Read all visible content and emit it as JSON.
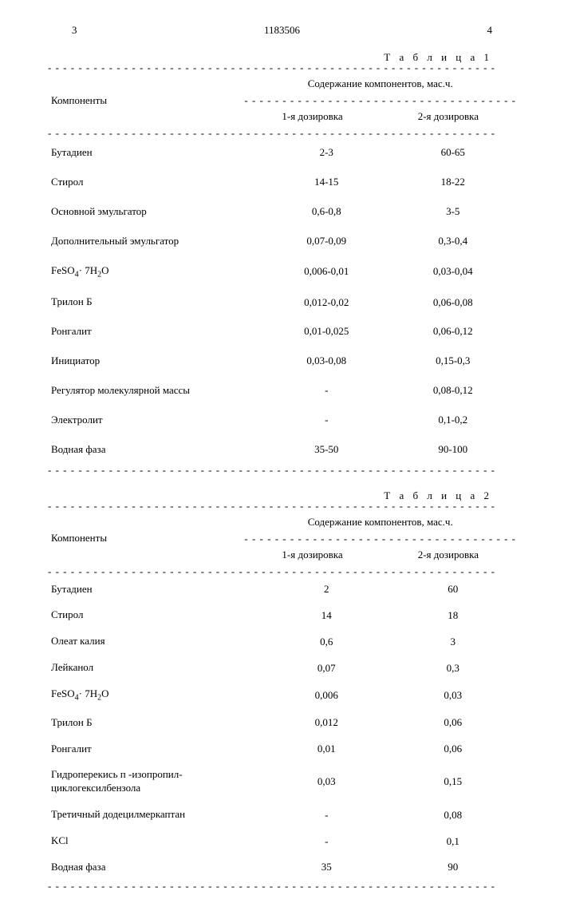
{
  "header": {
    "left_num": "3",
    "center_num": "1183506",
    "right_num": "4"
  },
  "table1": {
    "title": "Т а б л и ц а  1",
    "header_span": "Содержание компонентов, мас.ч.",
    "col_components": "Компоненты",
    "col_dose1": "1-я  дозировка",
    "col_dose2": "2-я  дозировка",
    "rows": [
      {
        "name": "Бутадиен",
        "d1": "2-3",
        "d2": "60-65"
      },
      {
        "name": "Стирол",
        "d1": "14-15",
        "d2": "18-22"
      },
      {
        "name": "Основной эмульгатор",
        "d1": "0,6-0,8",
        "d2": "3-5"
      },
      {
        "name": "Дополнительный эмульгатор",
        "d1": "0,07-0,09",
        "d2": "0,3-0,4"
      },
      {
        "name": "FeSO₄· 7H₂O",
        "d1": "0,006-0,01",
        "d2": "0,03-0,04"
      },
      {
        "name": "Трилон Б",
        "d1": "0,012-0,02",
        "d2": "0,06-0,08"
      },
      {
        "name": "Ронгалит",
        "d1": "0,01-0,025",
        "d2": "0,06-0,12"
      },
      {
        "name": "Инициатор",
        "d1": "0,03-0,08",
        "d2": "0,15-0,3"
      },
      {
        "name": "Регулятор молекулярной массы",
        "d1": "-",
        "d2": "0,08-0,12"
      },
      {
        "name": "Электролит",
        "d1": "-",
        "d2": "0,1-0,2"
      },
      {
        "name": "Водная фаза",
        "d1": "35-50",
        "d2": "90-100"
      }
    ]
  },
  "table2": {
    "title": "Т а б л и ц а  2",
    "header_span": "Содержание компонентов, мас.ч.",
    "col_components": "Компоненты",
    "col_dose1": "1-я  дозировка",
    "col_dose2": "2-я  дозировка",
    "rows": [
      {
        "name": "Бутадиен",
        "d1": "2",
        "d2": "60"
      },
      {
        "name": "Стирол",
        "d1": "14",
        "d2": "18"
      },
      {
        "name": "Олеат калия",
        "d1": "0,6",
        "d2": "3"
      },
      {
        "name": "Лейканол",
        "d1": "0,07",
        "d2": "0,3"
      },
      {
        "name": "FeSO₄· 7H₂O",
        "d1": "0,006",
        "d2": "0,03"
      },
      {
        "name": "Трилон Б",
        "d1": "0,012",
        "d2": "0,06"
      },
      {
        "name": "Ронгалит",
        "d1": "0,01",
        "d2": "0,06"
      },
      {
        "name": "Гидроперекись п -изопропил-\nциклогексилбензола",
        "d1": "0,03",
        "d2": "0,15"
      },
      {
        "name": "Третичный додецилмеркаптан",
        "d1": "-",
        "d2": "0,08"
      },
      {
        "name": "KCl",
        "d1": "-",
        "d2": "0,1"
      },
      {
        "name": "Водная фаза",
        "d1": "35",
        "d2": "90"
      }
    ]
  },
  "style": {
    "font_family": "Georgia, Times New Roman, serif",
    "font_size_pt": 13,
    "text_color": "#000000",
    "background_color": "#ffffff",
    "dash_char": "-"
  }
}
